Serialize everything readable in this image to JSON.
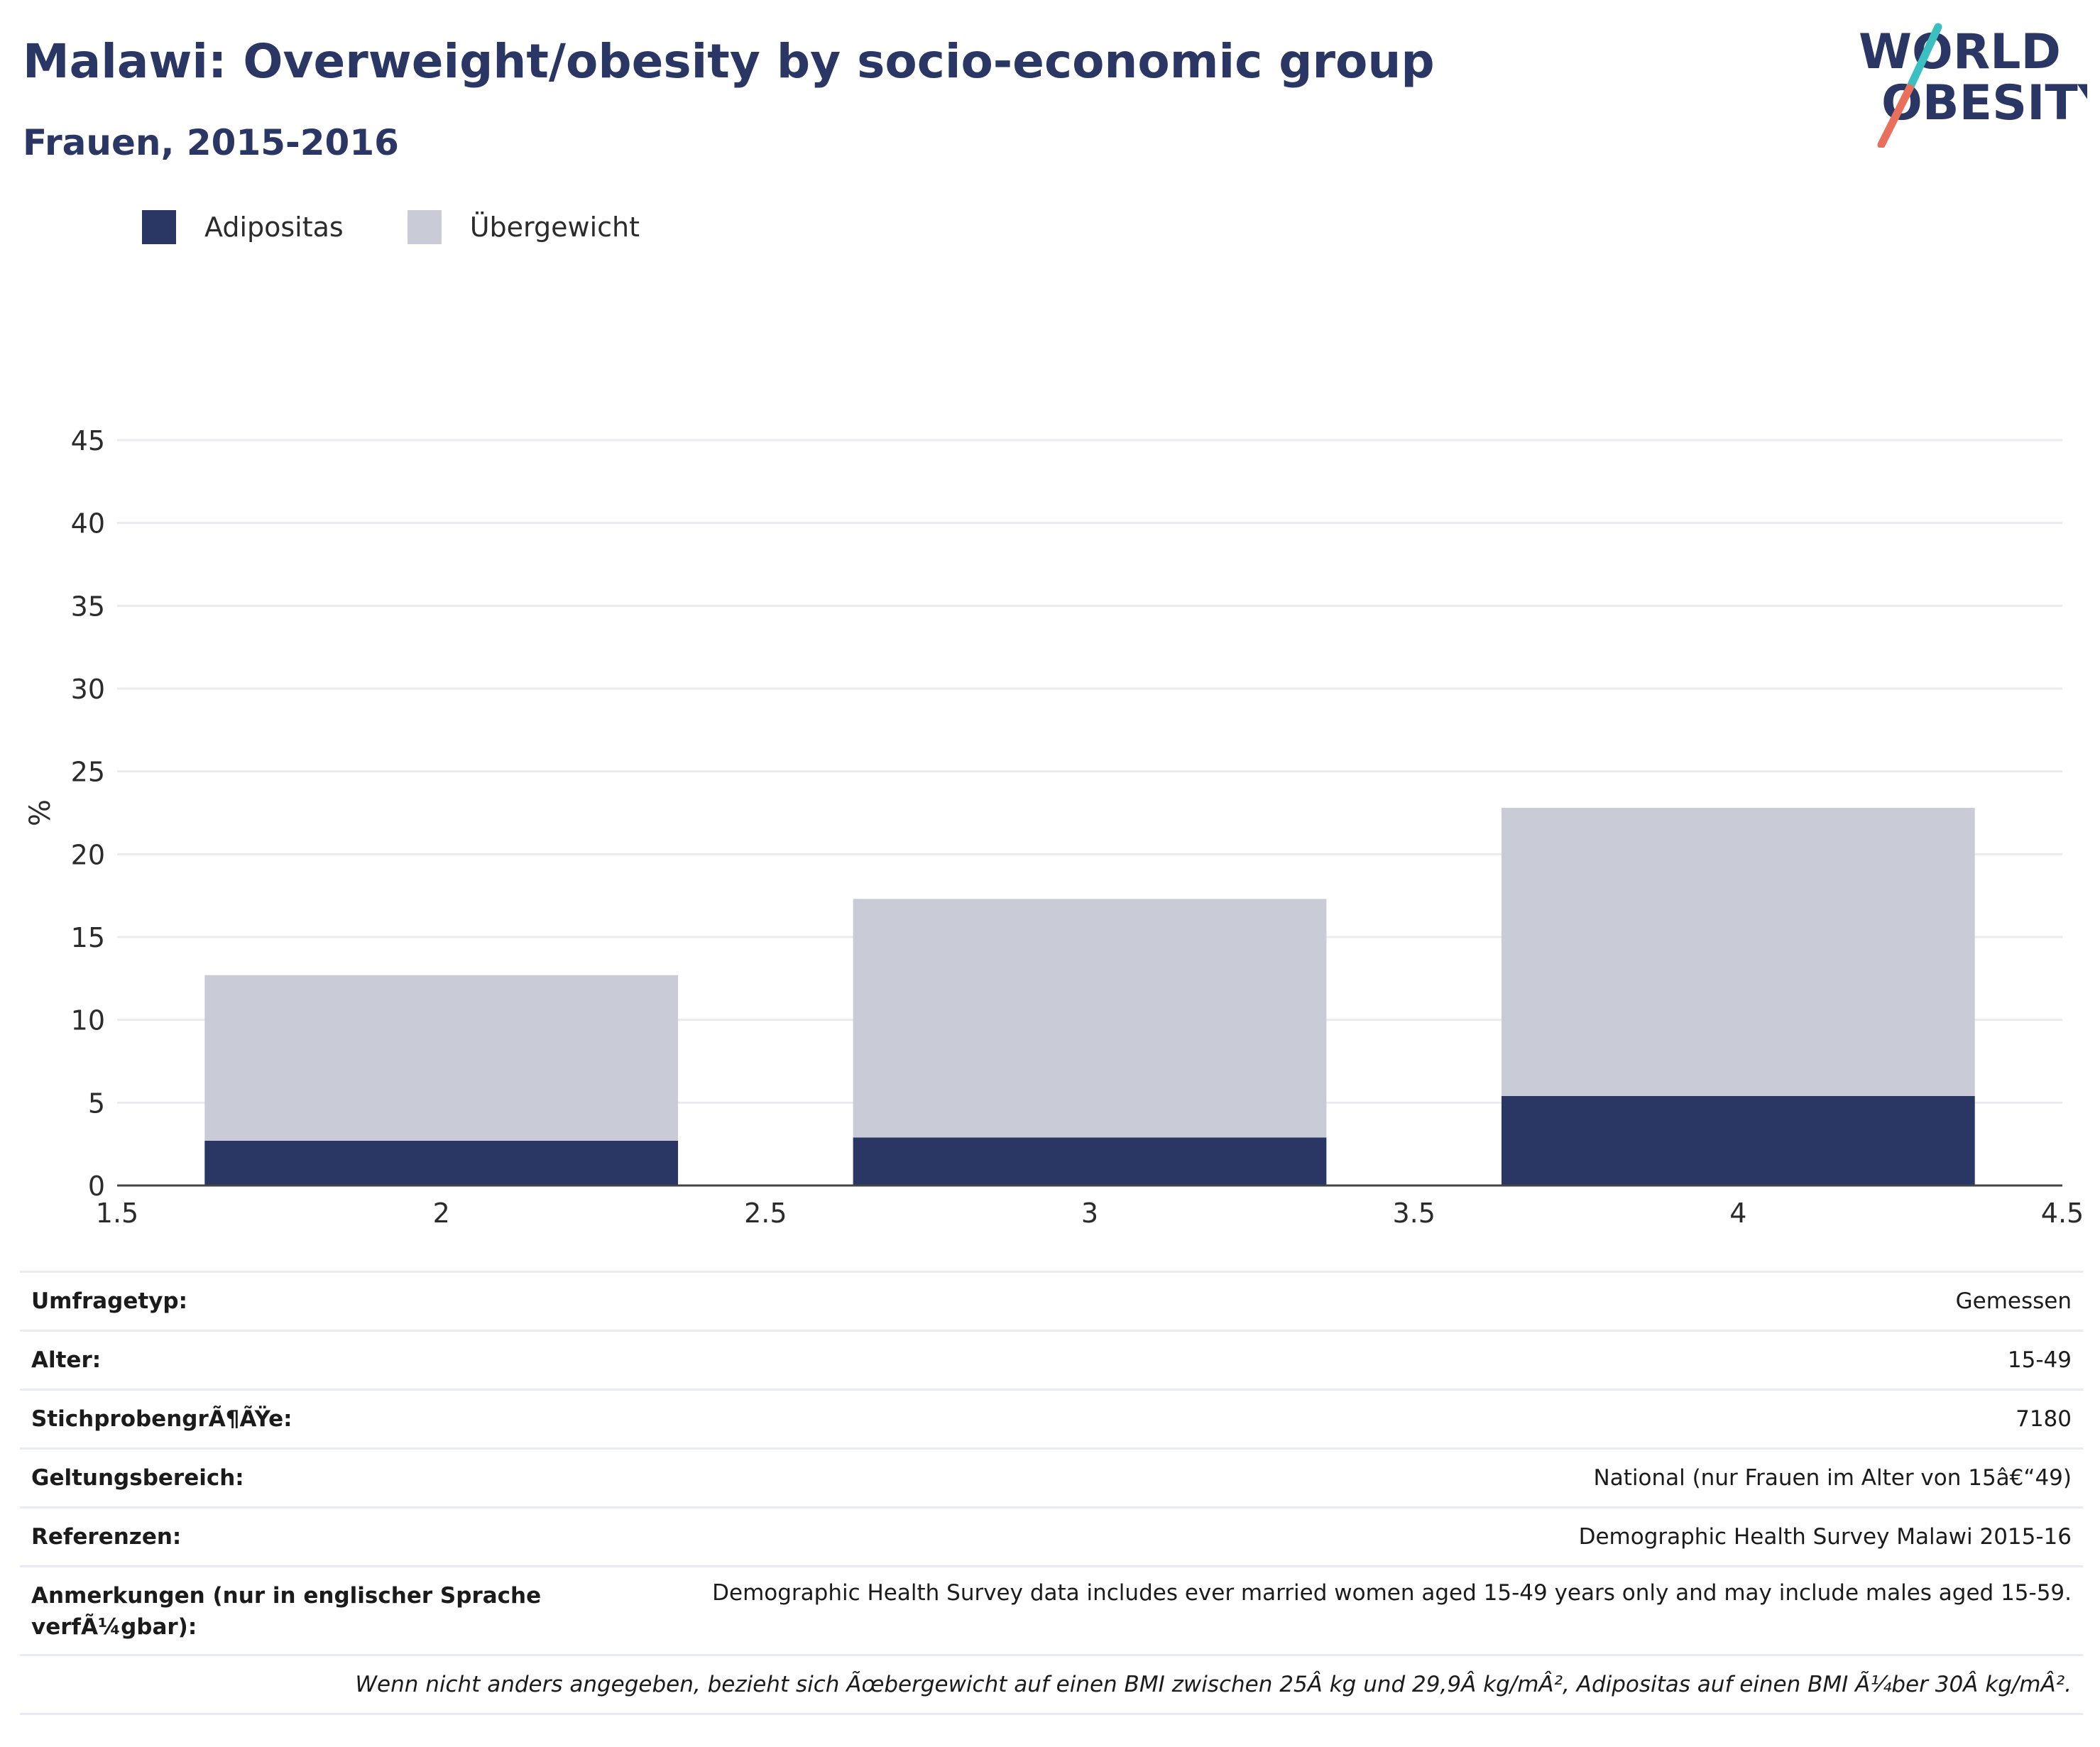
{
  "header": {
    "title": "Malawi: Overweight/obesity by socio-economic group",
    "subtitle": "Frauen, 2015-2016"
  },
  "logo": {
    "line1": "WORLD",
    "line2": "OBESITY",
    "text_color": "#2a3664",
    "accent_teal": "#3bbfc0",
    "accent_coral": "#e8705c"
  },
  "legend": [
    {
      "label": "Adipositas",
      "color": "#2a3664"
    },
    {
      "label": "Übergewicht",
      "color": "#c9ccd6"
    }
  ],
  "chart_data": {
    "type": "bar",
    "stacked": true,
    "x": [
      2,
      3,
      4
    ],
    "series": [
      {
        "name": "Adipositas",
        "values": [
          2.7,
          2.9,
          5.4
        ],
        "color": "#2a3664"
      },
      {
        "name": "Übergewicht",
        "values": [
          10.0,
          14.4,
          17.4
        ],
        "color": "#c9ccd6"
      }
    ],
    "xlim": [
      1.5,
      4.5
    ],
    "ylim": [
      0,
      45
    ],
    "xticks": [
      1.5,
      2,
      2.5,
      3,
      3.5,
      4,
      4.5
    ],
    "xtick_labels": [
      "1.5",
      "2",
      "2.5",
      "3",
      "3.5",
      "4",
      "4.5"
    ],
    "yticks": [
      0,
      5,
      10,
      15,
      20,
      25,
      30,
      35,
      40,
      45
    ],
    "ylabel": "%",
    "grid": true,
    "legend_position": "top-left"
  },
  "info": {
    "rows": [
      {
        "key": "Umfragetyp:",
        "value": "Gemessen"
      },
      {
        "key": "Alter:",
        "value": "15-49"
      },
      {
        "key": "StichprobengrÃ¶ÃŸe:",
        "value": "7180"
      },
      {
        "key": "Geltungsbereich:",
        "value": "National (nur Frauen im Alter von 15â€“49)"
      },
      {
        "key": "Referenzen:",
        "value": "Demographic Health Survey Malawi 2015-16"
      }
    ],
    "notes_key": "Anmerkungen (nur in englischer Sprache verfÃ¼gbar):",
    "notes_value": "Demographic Health Survey data includes ever married women aged 15-49 years only and may include males aged 15-59.",
    "footnote": "Wenn nicht anders angegeben, bezieht sich Ãœbergewicht auf einen BMI zwischen 25Â kg und 29,9Â kg/mÂ², Adipositas auf einen BMI Ã¼ber 30Â kg/mÂ²."
  }
}
